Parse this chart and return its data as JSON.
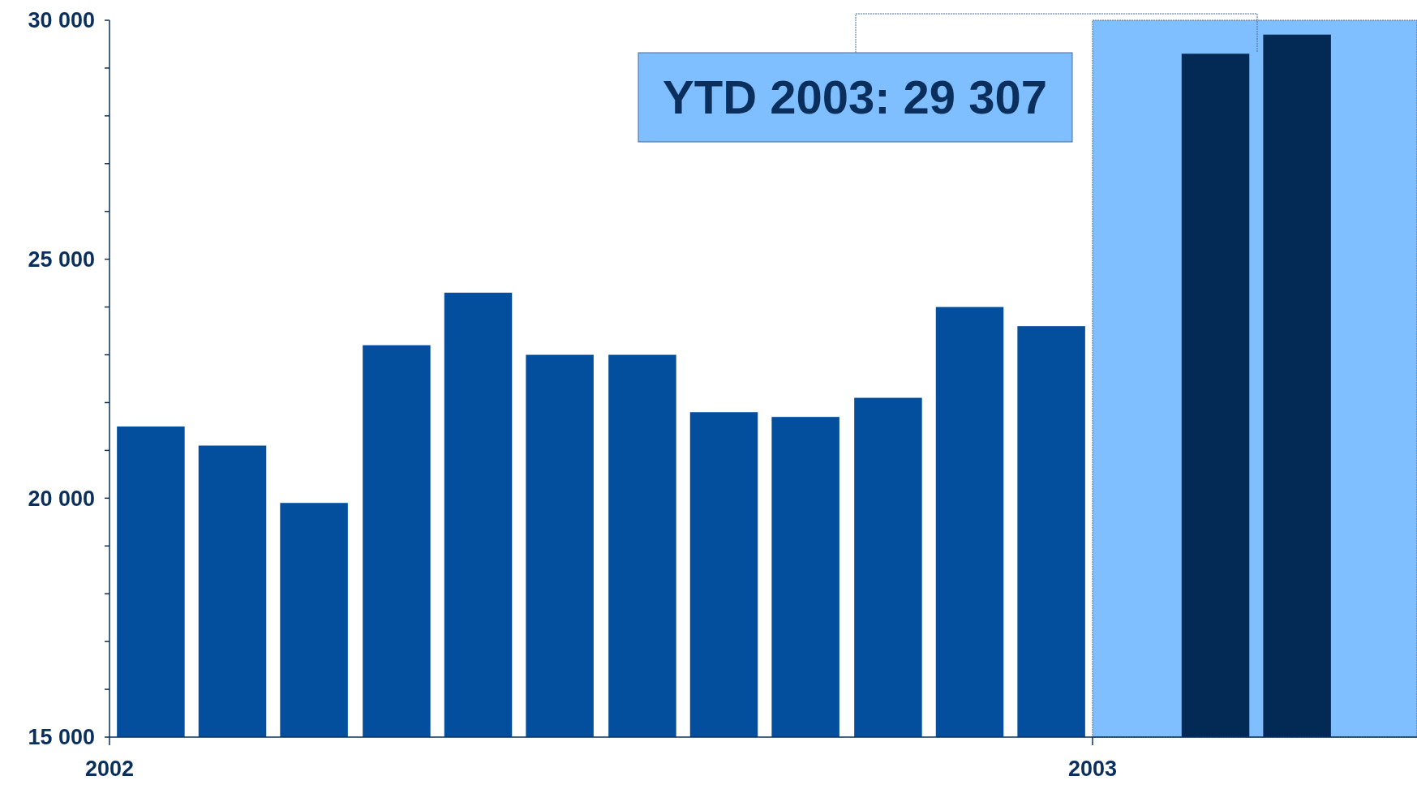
{
  "chart_data": {
    "type": "bar",
    "x": [
      2002.042,
      2002.125,
      2002.208,
      2002.292,
      2002.375,
      2002.458,
      2002.542,
      2002.625,
      2002.708,
      2002.792,
      2002.875,
      2002.958,
      2003.125,
      2003.208
    ],
    "values": [
      21500,
      21100,
      19900,
      23200,
      24300,
      23000,
      23000,
      21800,
      21700,
      22100,
      24000,
      23600,
      29300,
      29700
    ],
    "colors": [
      "#034f9e",
      "#034f9e",
      "#034f9e",
      "#034f9e",
      "#034f9e",
      "#034f9e",
      "#034f9e",
      "#034f9e",
      "#034f9e",
      "#034f9e",
      "#034f9e",
      "#034f9e",
      "#032a55",
      "#032a55"
    ],
    "xlim": [
      2002,
      2003.33
    ],
    "xticks": [
      {
        "value": 2002,
        "label": "2002"
      },
      {
        "value": 2003,
        "label": "2003"
      }
    ],
    "ylim": [
      15000,
      30000
    ],
    "yticks": [
      {
        "value": 15000,
        "label": "15 000"
      },
      {
        "value": 16000,
        "label": null
      },
      {
        "value": 17000,
        "label": null
      },
      {
        "value": 18000,
        "label": null
      },
      {
        "value": 19000,
        "label": null
      },
      {
        "value": 20000,
        "label": "20 000"
      },
      {
        "value": 21000,
        "label": null
      },
      {
        "value": 22000,
        "label": null
      },
      {
        "value": 23000,
        "label": null
      },
      {
        "value": 24000,
        "label": null
      },
      {
        "value": 25000,
        "label": "25 000"
      },
      {
        "value": 26000,
        "label": null
      },
      {
        "value": 27000,
        "label": null
      },
      {
        "value": 28000,
        "label": null
      },
      {
        "value": 29000,
        "label": null
      },
      {
        "value": 30000,
        "label": "30 000"
      }
    ],
    "bands": [
      {
        "axis": "x",
        "from": 2003,
        "to": 2003.33,
        "color": "#80bfff"
      }
    ],
    "annotations": [
      "YTD 2003: 29 307"
    ],
    "grid": false
  }
}
